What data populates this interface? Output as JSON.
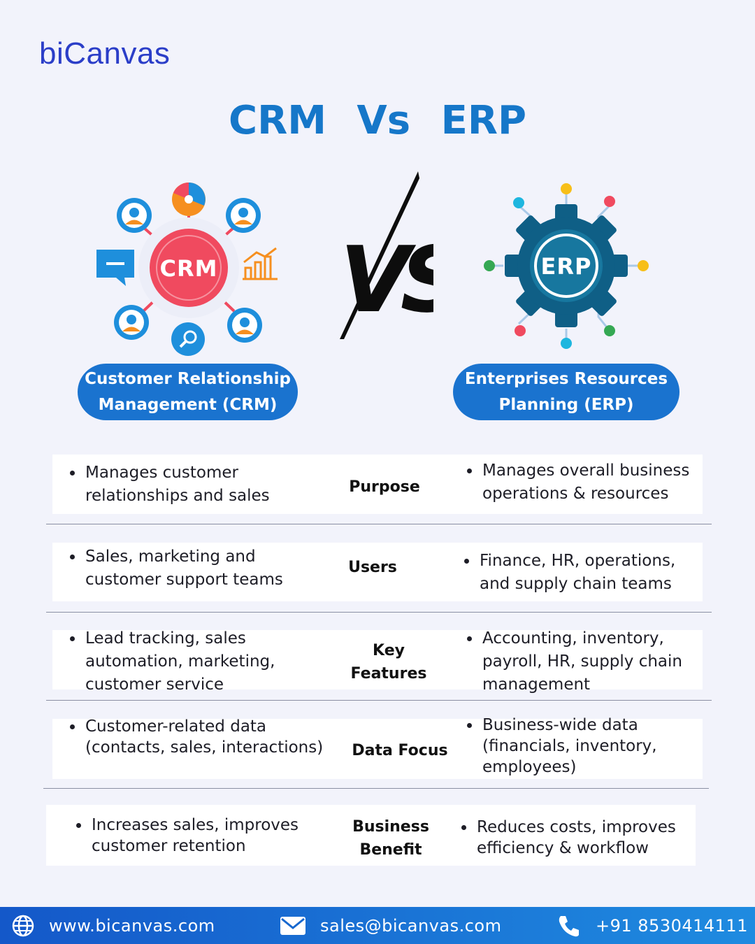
{
  "brand": {
    "logo": "biCanvas"
  },
  "title": {
    "left": "CRM",
    "middle": "Vs",
    "right": "ERP"
  },
  "crm": {
    "badge": "CRM",
    "name_line1": "Customer Relationship",
    "name_line2": "Management (CRM)",
    "colors": {
      "primary": "#f04a5f",
      "accent": "#f68f1f",
      "blue": "#1e8fdc"
    }
  },
  "erp": {
    "badge": "ERP",
    "name_line1": "Enterprises Resources",
    "name_line2": "Planning (ERP)",
    "colors": {
      "primary": "#0f5f86",
      "inner": "#17779f"
    }
  },
  "comparison": [
    {
      "label_line1": "Purpose",
      "label_line2": "",
      "crm_line1": "Manages customer",
      "crm_line2": "relationships and sales",
      "crm_line3": "",
      "erp_line1": "Manages overall business",
      "erp_line2": "operations & resources",
      "erp_line3": ""
    },
    {
      "label_line1": "Users",
      "label_line2": "",
      "crm_line1": "Sales, marketing and",
      "crm_line2": "customer support teams",
      "crm_line3": "",
      "erp_line1": "Finance, HR, operations,",
      "erp_line2": "and supply chain teams",
      "erp_line3": ""
    },
    {
      "label_line1": "Key",
      "label_line2": "Features",
      "crm_line1": "Lead tracking, sales",
      "crm_line2": "automation, marketing,",
      "crm_line3": "customer service",
      "erp_line1": "Accounting, inventory,",
      "erp_line2": "payroll, HR, supply chain",
      "erp_line3": "management"
    },
    {
      "label_line1": "Data Focus",
      "label_line2": "",
      "crm_line1": "Customer-related data",
      "crm_line2": "(contacts, sales, interactions)",
      "crm_line3": "",
      "erp_line1": "Business-wide data",
      "erp_line2": "(financials, inventory,",
      "erp_line3": "employees)"
    },
    {
      "label_line1": "Business",
      "label_line2": "Benefit",
      "crm_line1": "Increases sales, improves",
      "crm_line2": "customer retention",
      "crm_line3": "",
      "erp_line1": "Reduces costs, improves",
      "erp_line2": "efficiency & workflow",
      "erp_line3": ""
    }
  ],
  "footer": {
    "website": "www.bicanvas.com",
    "email": "sales@bicanvas.com",
    "phone": "+91 8530414111",
    "icons": [
      "globe-icon",
      "mail-icon",
      "phone-icon"
    ]
  }
}
